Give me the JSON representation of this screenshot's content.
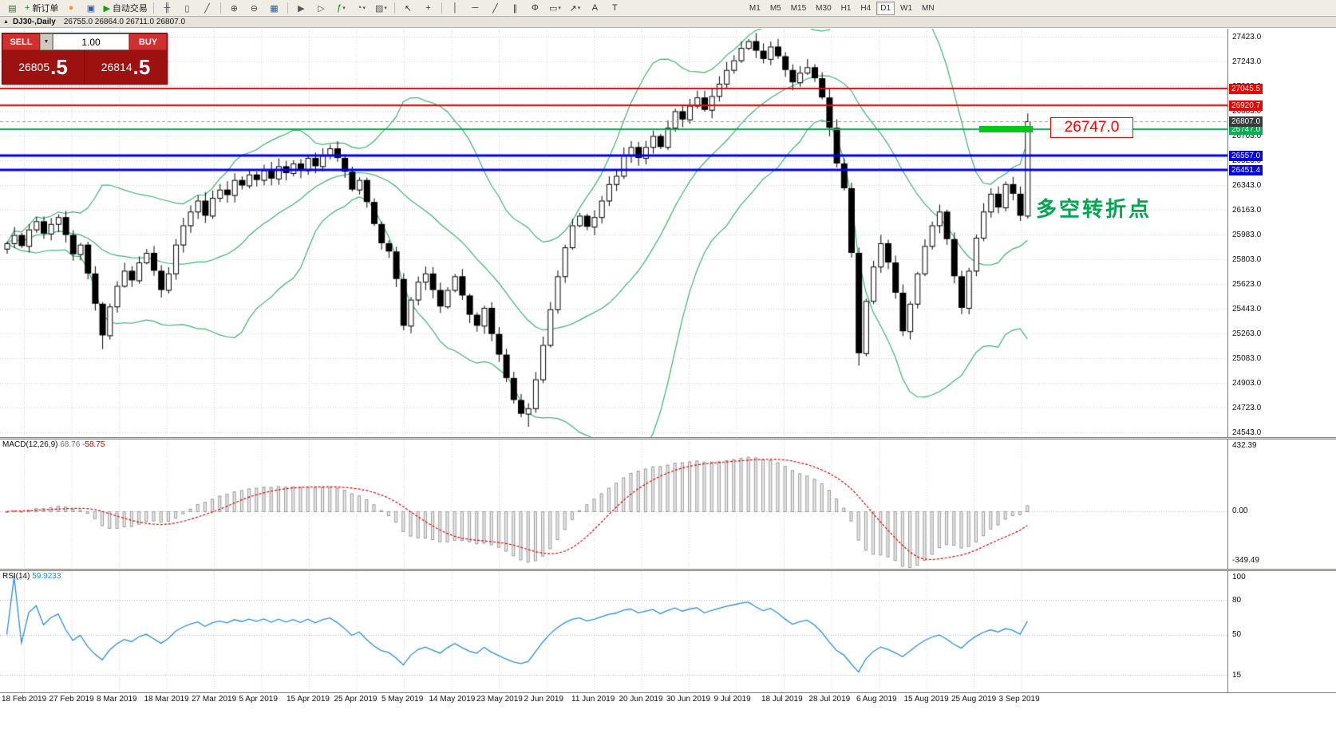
{
  "toolbar": {
    "caret_glyph": "▾",
    "groups": [
      {
        "items": [
          {
            "name": "new-chart-icon",
            "glyph": "▤",
            "color": "#336633"
          },
          {
            "name": "new-order-button",
            "glyph": "+",
            "color": "#1a8a1a",
            "label": "新订单"
          },
          {
            "name": "mql-community-icon",
            "glyph": "●",
            "color": "#e0a420"
          },
          {
            "name": "data-window-icon",
            "glyph": "▣",
            "color": "#2a5aa0"
          },
          {
            "name": "autotrading-button",
            "glyph": "▶",
            "color": "#12a012",
            "label": "自动交易"
          }
        ]
      },
      {
        "items": [
          {
            "name": "bar-chart-icon",
            "glyph": "╫",
            "color": "#444444"
          },
          {
            "name": "candlestick-chart-icon",
            "glyph": "▯",
            "color": "#444444"
          },
          {
            "name": "line-chart-icon",
            "glyph": "╱",
            "color": "#444444"
          }
        ]
      },
      {
        "items": [
          {
            "name": "zoom-in-icon",
            "glyph": "⊕",
            "color": "#444444"
          },
          {
            "name": "zoom-out-icon",
            "glyph": "⊖",
            "color": "#444444"
          },
          {
            "name": "tile-windows-icon",
            "glyph": "▦",
            "color": "#2a5aa0"
          }
        ]
      },
      {
        "items": [
          {
            "name": "auto-scroll-icon",
            "glyph": "▶",
            "color": "#555555"
          },
          {
            "name": "chart-shift-icon",
            "glyph": "▷",
            "color": "#555555"
          },
          {
            "name": "indicators-icon",
            "glyph": "ƒ",
            "color": "#1a6a1a",
            "caret": true
          },
          {
            "name": "periods-icon",
            "glyph": "◔",
            "color": "#555555",
            "caret": true
          },
          {
            "name": "templates-icon",
            "glyph": "▨",
            "color": "#555555",
            "caret": true
          }
        ]
      },
      {
        "items": [
          {
            "name": "cursor-icon",
            "glyph": "↖",
            "color": "#333333"
          },
          {
            "name": "crosshair-icon",
            "glyph": "+",
            "color": "#333333"
          }
        ]
      },
      {
        "items": [
          {
            "name": "vertical-line-icon",
            "glyph": "│",
            "color": "#333333"
          },
          {
            "name": "horizontal-line-icon",
            "glyph": "─",
            "color": "#333333"
          },
          {
            "name": "trendline-icon",
            "glyph": "╱",
            "color": "#333333"
          },
          {
            "name": "channel-icon",
            "glyph": "∥",
            "color": "#333333"
          },
          {
            "name": "fibonacci-icon",
            "glyph": "Φ",
            "color": "#333333"
          },
          {
            "name": "shapes-icon",
            "glyph": "▭",
            "color": "#333333",
            "caret": true
          },
          {
            "name": "arrows-icon",
            "glyph": "↗",
            "color": "#333333",
            "caret": true
          },
          {
            "name": "text-icon",
            "glyph": "A",
            "color": "#333333"
          },
          {
            "name": "text-label-icon",
            "glyph": "T",
            "color": "#333333"
          }
        ]
      }
    ],
    "timeframes": [
      "M1",
      "M5",
      "M15",
      "M30",
      "H1",
      "H4",
      "D1",
      "W1",
      "MN"
    ],
    "active_timeframe": "D1"
  },
  "chart_header": {
    "collapse_glyph": "▲",
    "symbol": "DJ30-,Daily",
    "ohlc": "26755.0 26864.0 26711.0 26807.0"
  },
  "trade_panel": {
    "sell_label": "SELL",
    "buy_label": "BUY",
    "caret_glyph": "▼",
    "volume": "1.00",
    "sell_price_main": "26805",
    "sell_price_frac": ".5",
    "buy_price_main": "26814",
    "buy_price_frac": ".5"
  },
  "annotations": {
    "price_callout": "26747.0",
    "turning_point_text": "多空转折点"
  },
  "chart_data": {
    "type": "candlestick",
    "symbol": "DJ30-",
    "timeframe": "Daily",
    "price_min": 24510,
    "price_max": 27480,
    "price_axis": [
      "27423.0",
      "27243.0",
      "27063.0",
      "26883.0",
      "26703.0",
      "26523.0",
      "26343.0",
      "26163.0",
      "25983.0",
      "25803.0",
      "25623.0",
      "25443.0",
      "25263.0",
      "25083.0",
      "24903.0",
      "24723.0",
      "24543.0"
    ],
    "h_lines": [
      {
        "price": 27045.5,
        "label": "27045.5",
        "color": "#ee0000",
        "width": 2
      },
      {
        "price": 26920.7,
        "label": "26920.7",
        "color": "#ee0000",
        "width": 2
      },
      {
        "price": 26747.0,
        "label": "26747.0",
        "color": "#00b050",
        "width": 2
      },
      {
        "price": 26557.0,
        "label": "26557.0",
        "color": "#0000ee",
        "width": 3
      },
      {
        "price": 26451.4,
        "label": "26451.4",
        "color": "#0000ee",
        "width": 3
      }
    ],
    "current_price": 26807.0,
    "current_price_label": "26807.0",
    "bollinger": {
      "period": 20,
      "deviation": 2,
      "color": "#3cb371"
    },
    "closes": [
      25920,
      25980,
      25900,
      26020,
      26080,
      25990,
      26060,
      26110,
      25980,
      25840,
      25910,
      25700,
      25480,
      25250,
      25460,
      25610,
      25720,
      25650,
      25780,
      25850,
      25720,
      25580,
      25700,
      25910,
      26050,
      26150,
      26230,
      26120,
      26250,
      26310,
      26270,
      26380,
      26340,
      26420,
      26380,
      26450,
      26390,
      26480,
      26430,
      26500,
      26450,
      26540,
      26480,
      26560,
      26610,
      26540,
      26440,
      26310,
      26380,
      26220,
      26060,
      25920,
      25860,
      25660,
      25320,
      25510,
      25640,
      25700,
      25580,
      25460,
      25580,
      25680,
      25540,
      25400,
      25320,
      25450,
      25260,
      25110,
      24940,
      24780,
      24680,
      24720,
      24930,
      25180,
      25440,
      25680,
      25890,
      26050,
      26120,
      26040,
      26110,
      26230,
      26350,
      26410,
      26560,
      26620,
      26540,
      26620,
      26700,
      26620,
      26760,
      26880,
      26820,
      26920,
      26980,
      26890,
      26990,
      27080,
      27180,
      27250,
      27340,
      27390,
      27320,
      27260,
      27350,
      27280,
      27180,
      27090,
      27160,
      27200,
      27120,
      26980,
      26760,
      26500,
      26320,
      25850,
      25120,
      25500,
      25750,
      25920,
      25780,
      25560,
      25280,
      25480,
      25700,
      25900,
      26050,
      26150,
      25950,
      25680,
      25450,
      25720,
      25960,
      26150,
      26280,
      26180,
      26350,
      26280,
      26120,
      26807
    ],
    "wick_overrides": {
      "13": {
        "low": 25150
      },
      "71": {
        "low": 24585
      },
      "116": {
        "low": 25030
      },
      "139": {
        "high": 26864,
        "low": 26100
      }
    },
    "dates": [
      "18 Feb 2019",
      "27 Feb 2019",
      "8 Mar 2019",
      "18 Mar 2019",
      "27 Mar 2019",
      "5 Apr 2019",
      "15 Apr 2019",
      "25 Apr 2019",
      "5 May 2019",
      "14 May 2019",
      "23 May 2019",
      "2 Jun 2019",
      "11 Jun 2019",
      "20 Jun 2019",
      "30 Jun 2019",
      "9 Jul 2019",
      "18 Jul 2019",
      "28 Jul 2019",
      "6 Aug 2019",
      "15 Aug 2019",
      "25 Aug 2019",
      "3 Sep 2019"
    ],
    "macd": {
      "title": "MACD(12,26,9)",
      "value_main": "68.76",
      "value_signal": "-58.75",
      "axis_max": "432.39",
      "axis_zero": "0.00",
      "axis_min": "-349.49",
      "histogram_color": "#ececec",
      "histogram_border": "#9a9a9a",
      "signal_color": "#e00000"
    },
    "rsi": {
      "title": "RSI(14)",
      "value": "59.9233",
      "line_color": "#2a8fdd",
      "axis_labels": [
        "100",
        "80",
        "50",
        "15"
      ],
      "levels": [
        80,
        50,
        15
      ]
    }
  }
}
